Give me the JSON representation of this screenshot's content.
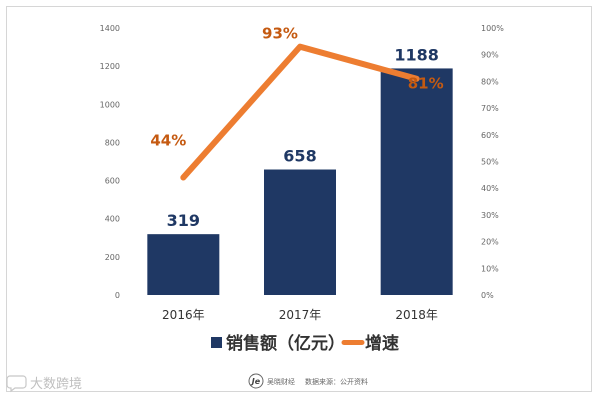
{
  "chart_data": {
    "type": "bar",
    "categories": [
      "2016年",
      "2017年",
      "2018年"
    ],
    "series": [
      {
        "name": "销售额（亿元）",
        "axis": "left",
        "kind": "bar",
        "values": [
          319,
          658,
          1188
        ],
        "labels": [
          "319",
          "658",
          "1188"
        ],
        "color": "#1f3864"
      },
      {
        "name": "增速",
        "axis": "right",
        "kind": "line",
        "values": [
          44,
          93,
          81
        ],
        "labels": [
          "44%",
          "93%",
          "81%"
        ],
        "color": "#ed7d31",
        "label_color": "#c55a11"
      }
    ],
    "y_left": {
      "min": 0,
      "max": 1400,
      "ticks": [
        "0",
        "200",
        "400",
        "600",
        "800",
        "1000",
        "1200",
        "1400"
      ]
    },
    "y_right": {
      "min": 0,
      "max": 100,
      "ticks": [
        "0%",
        "10%",
        "20%",
        "30%",
        "40%",
        "50%",
        "60%",
        "70%",
        "80%",
        "90%",
        "100%"
      ]
    },
    "grid": false,
    "legend_position": "bottom"
  },
  "footer": {
    "logo_text": "Je",
    "brand": "吴晓财经",
    "source": "数据来源：公开资料"
  },
  "watermark": {
    "icon": "speech-bubble-icon",
    "text": "大数跨境"
  }
}
